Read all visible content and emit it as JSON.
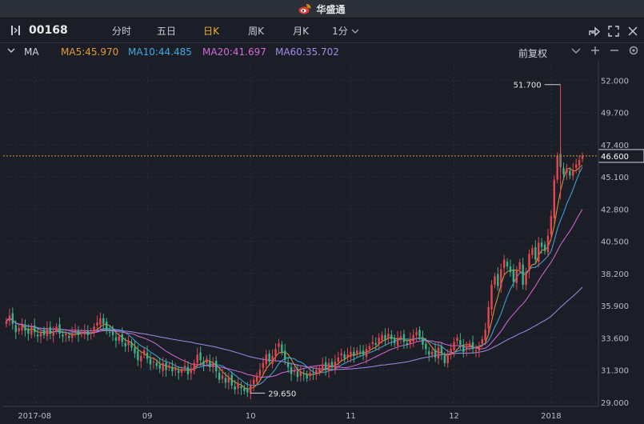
{
  "titlebar": {
    "brand": "华盛通",
    "logo_icon": "weibo-style-logo-icon"
  },
  "toolbar": {
    "stock_code": "00168",
    "tabs": [
      {
        "label": "分时"
      },
      {
        "label": "五日"
      },
      {
        "label": "日K",
        "active": true
      },
      {
        "label": "周K"
      },
      {
        "label": "月K"
      },
      {
        "label": "1分"
      }
    ],
    "right_icons": [
      "share-icon",
      "fullscreen-icon",
      "close-icon"
    ]
  },
  "ma_bar": {
    "label": "MA",
    "ma5": "MA5:45.970",
    "ma10": "MA10:44.485",
    "ma20": "MA20:41.697",
    "ma60": "MA60:35.702",
    "adjust": "前复权",
    "controls": [
      "chevron-down-icon",
      "zoom-in-icon",
      "zoom-out-icon",
      "settings-icon"
    ]
  },
  "colors": {
    "up": "#e2474f",
    "down": "#3bb38a",
    "ma5": "#e39a36",
    "ma10": "#3fa9e0",
    "ma20": "#d46ad8",
    "ma60": "#a489e8",
    "current_line": "#d9a034",
    "grid": "#2a2e38"
  },
  "chart_data": {
    "type": "candlestick",
    "y_ticks": [
      "52.000",
      "49.700",
      "47.400",
      "45.100",
      "42.800",
      "40.500",
      "38.200",
      "35.900",
      "33.600",
      "31.300",
      "29.000"
    ],
    "ylim": [
      28.7,
      52.6
    ],
    "x_labels": [
      {
        "label": "2017-08",
        "index": 9
      },
      {
        "label": "09",
        "index": 45
      },
      {
        "label": "10",
        "index": 78
      },
      {
        "label": "11",
        "index": 110
      },
      {
        "label": "12",
        "index": 143
      },
      {
        "label": "2018",
        "index": 174
      }
    ],
    "current_price": "46.600",
    "high_annotation": {
      "label": "51.700",
      "value": 51.7,
      "index": 177
    },
    "low_annotation": {
      "label": "29.650",
      "value": 29.65,
      "index": 78
    },
    "closes": [
      34.8,
      35.2,
      34.6,
      34.0,
      34.3,
      34.5,
      34.1,
      33.9,
      34.4,
      34.0,
      33.7,
      34.0,
      33.8,
      34.3,
      33.9,
      34.1,
      34.4,
      33.9,
      33.7,
      33.9,
      33.6,
      33.9,
      34.2,
      33.8,
      34.0,
      34.1,
      33.8,
      34.0,
      34.4,
      34.7,
      35.0,
      34.6,
      34.1,
      34.0,
      33.8,
      33.4,
      33.7,
      33.3,
      33.0,
      33.4,
      32.9,
      32.5,
      32.0,
      32.3,
      32.7,
      32.1,
      31.7,
      31.9,
      31.6,
      31.4,
      31.8,
      31.3,
      31.6,
      31.2,
      31.4,
      31.1,
      31.3,
      31.6,
      31.0,
      31.4,
      31.8,
      32.4,
      32.0,
      31.7,
      32.1,
      31.5,
      31.8,
      31.2,
      30.6,
      30.9,
      30.4,
      30.8,
      30.2,
      29.9,
      30.3,
      30.0,
      29.8,
      29.7,
      30.2,
      30.6,
      30.9,
      31.3,
      31.8,
      32.4,
      31.9,
      32.3,
      32.8,
      33.2,
      32.6,
      32.0,
      31.5,
      31.0,
      31.3,
      30.8,
      31.2,
      31.0,
      30.7,
      31.1,
      31.0,
      31.3,
      31.4,
      31.7,
      31.3,
      31.8,
      31.5,
      31.9,
      32.2,
      32.5,
      32.1,
      32.4,
      32.6,
      32.3,
      32.7,
      32.6,
      32.4,
      32.8,
      33.0,
      33.3,
      33.1,
      33.6,
      33.8,
      33.4,
      33.9,
      33.5,
      33.2,
      33.6,
      33.7,
      33.3,
      33.1,
      33.5,
      33.8,
      34.0,
      33.7,
      33.1,
      32.8,
      32.4,
      32.6,
      32.2,
      32.9,
      32.5,
      31.8,
      32.3,
      32.8,
      33.3,
      33.6,
      33.1,
      32.6,
      33.0,
      33.2,
      32.8,
      32.7,
      33.0,
      33.5,
      34.2,
      35.8,
      37.4,
      38.0,
      37.3,
      38.5,
      39.2,
      38.7,
      38.3,
      37.6,
      38.4,
      39.0,
      37.4,
      38.2,
      39.6,
      40.0,
      39.2,
      40.4,
      40.1,
      39.8,
      40.9,
      42.3,
      44.9,
      46.6,
      45.8,
      45.3,
      45.7,
      45.2,
      45.6,
      46.0,
      46.3,
      46.6
    ]
  }
}
